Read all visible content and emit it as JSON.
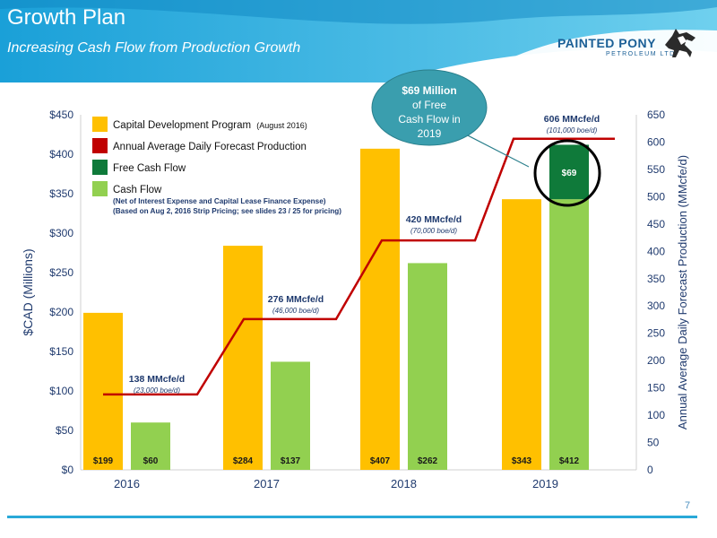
{
  "slide": {
    "title": "Growth Plan",
    "subtitle": "Increasing Cash Flow from Production Growth",
    "page_number": "7",
    "logo": {
      "name": "PAINTED PONY",
      "sub": "PETROLEUM LTD."
    }
  },
  "callout": {
    "line1": "$69 Million",
    "line2": "of Free",
    "line3": "Cash Flow in",
    "line4": "2019"
  },
  "legend": {
    "capital": {
      "label": "Capital Development Program",
      "note": "(August 2016)"
    },
    "production": {
      "label": "Annual Average Daily Forecast Production"
    },
    "free_cash_flow": {
      "label": "Free Cash Flow"
    },
    "cash_flow": {
      "label": "Cash Flow",
      "note1": "(Net of Interest Expense and Capital Lease Finance Expense)",
      "note2": "(Based on Aug 2, 2016 Strip Pricing; see slides 23 / 25 for pricing)"
    }
  },
  "colors": {
    "capital": "#ffc000",
    "cash_flow": "#92d050",
    "free_cash_flow": "#0f7a3a",
    "production": "#c00000",
    "axis_text": "#1f3a6e",
    "header": "#1f9fd6"
  },
  "chart_data": {
    "type": "bar",
    "categories": [
      "2016",
      "2017",
      "2018",
      "2019"
    ],
    "ylabel": "$CAD (Millions)",
    "y2label": "Annual Average Daily Forecast Production (MMcfe/d)",
    "ylim": [
      0,
      450
    ],
    "y2lim": [
      0,
      650
    ],
    "yticks": [
      "$0",
      "$50",
      "$100",
      "$150",
      "$200",
      "$250",
      "$300",
      "$350",
      "$400",
      "$450"
    ],
    "y2ticks": [
      "0",
      "50",
      "100",
      "150",
      "200",
      "250",
      "300",
      "350",
      "400",
      "450",
      "500",
      "550",
      "600",
      "650"
    ],
    "series": [
      {
        "name": "Capital Development Program",
        "values": [
          199,
          284,
          407,
          343
        ],
        "labels": [
          "$199",
          "$284",
          "$407",
          "$343"
        ]
      },
      {
        "name": "Cash Flow",
        "values": [
          60,
          137,
          262,
          412
        ],
        "labels": [
          "$60",
          "$137",
          "$262",
          "$412"
        ]
      },
      {
        "name": "Free Cash Flow",
        "values": [
          null,
          null,
          null,
          69
        ],
        "base": [
          null,
          null,
          null,
          343
        ],
        "labels": [
          "",
          "",
          "",
          "$69"
        ]
      }
    ],
    "production": {
      "name": "Annual Average Daily Forecast Production",
      "values": [
        138,
        276,
        420,
        606
      ],
      "labels": [
        "138 MMcfe/d",
        "276 MMcfe/d",
        "420 MMcfe/d",
        "606 MMcfe/d"
      ],
      "sublabels": [
        "(23,000 boe/d)",
        "(46,000 boe/d)",
        "(70,000 boe/d)",
        "(101,000 boe/d)"
      ]
    },
    "grid": false,
    "legend_position": "top-left"
  }
}
